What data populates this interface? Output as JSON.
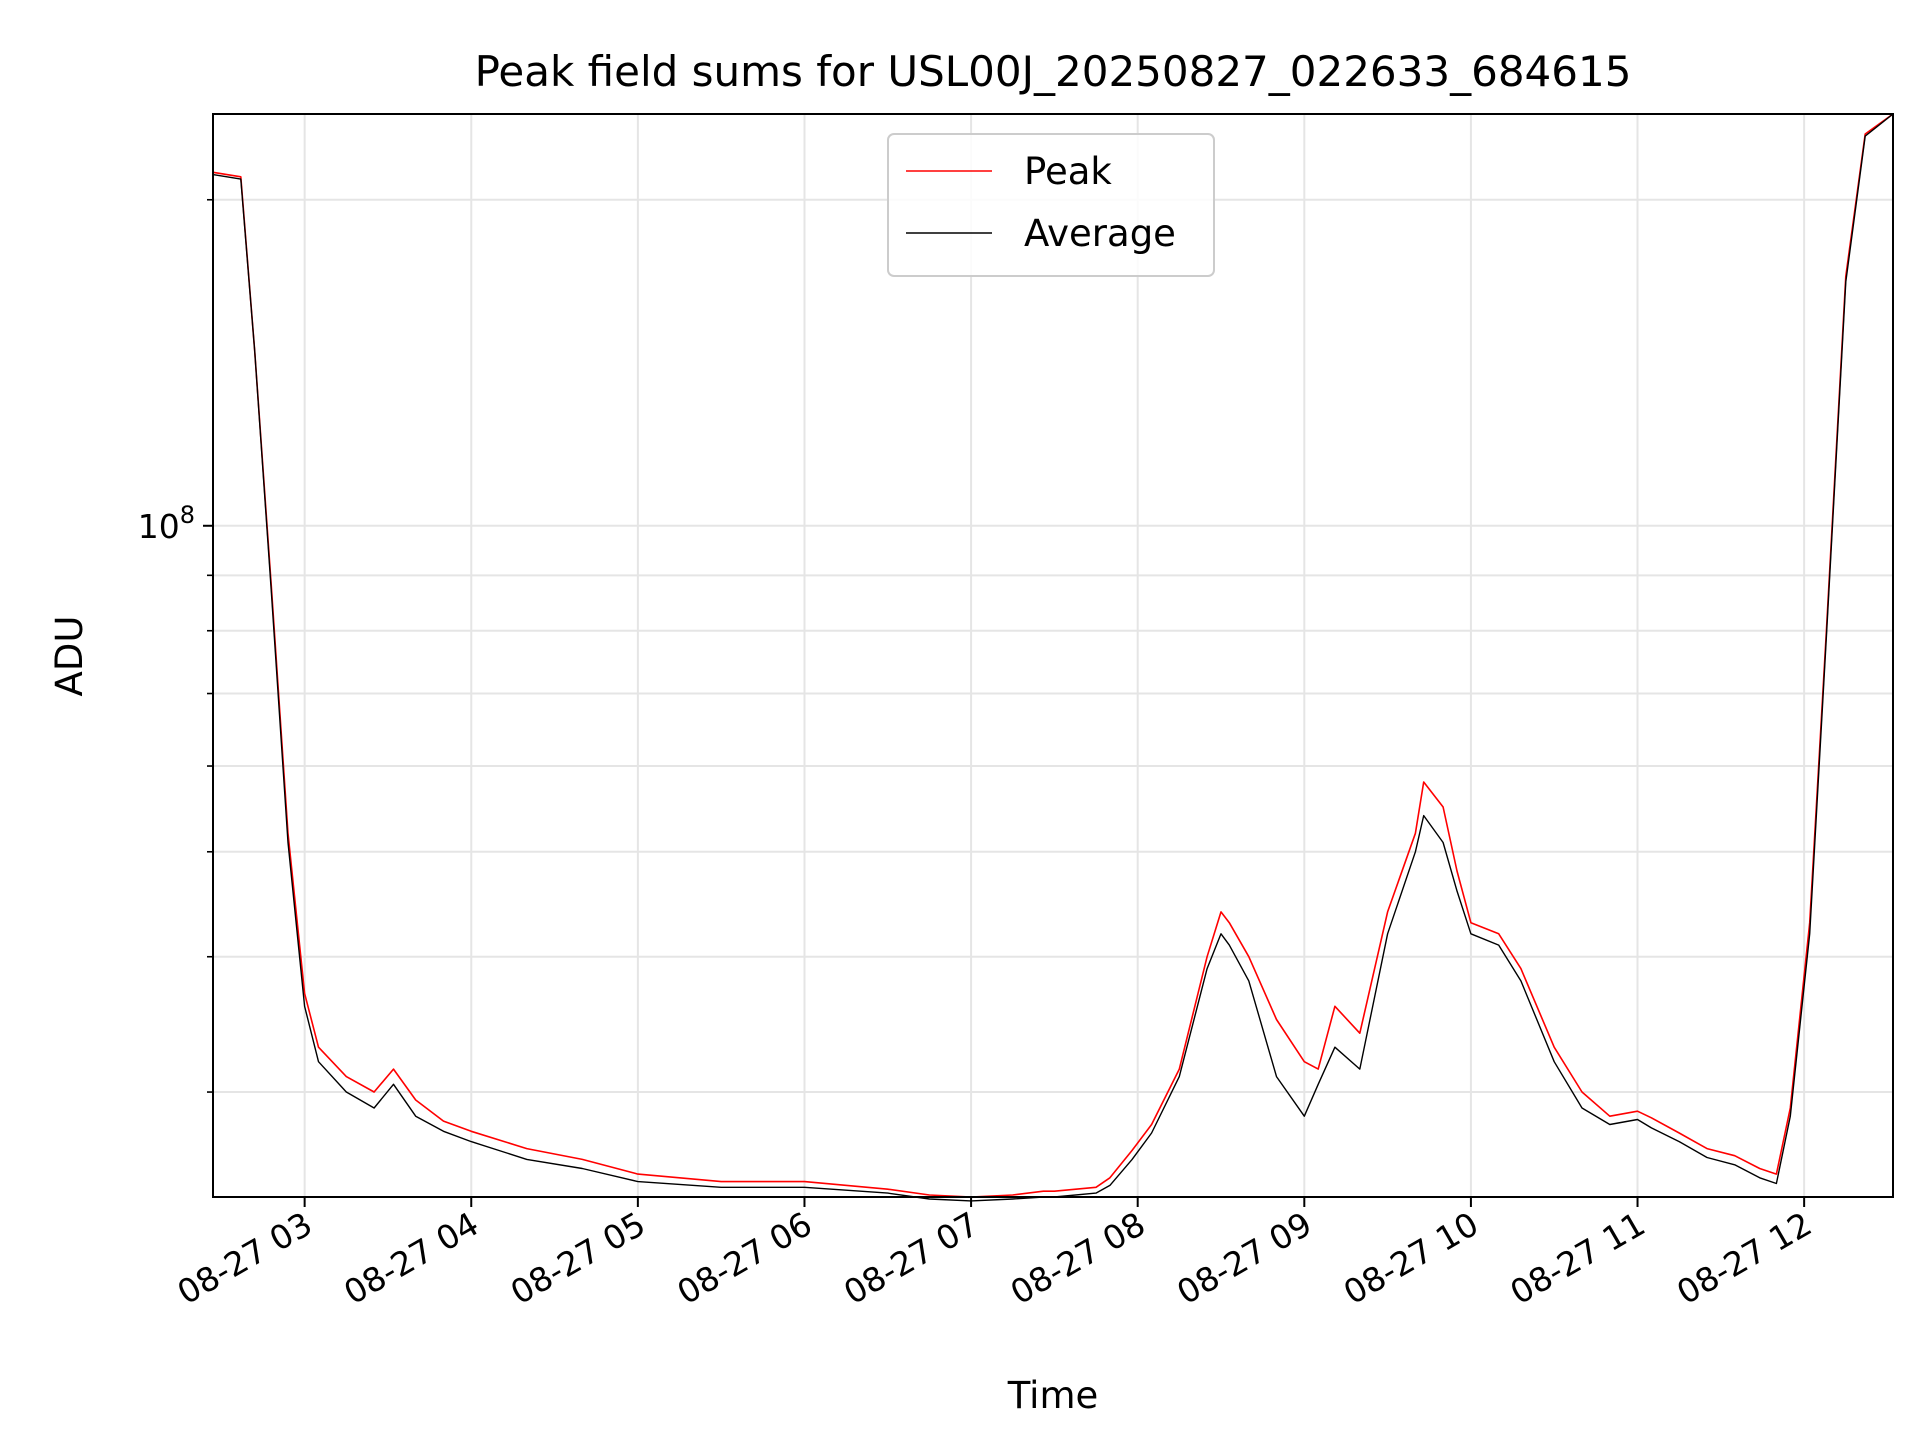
{
  "chart_data": {
    "type": "line",
    "title": "Peak field sums for USL00J_20250827_022633_684615",
    "xlabel": "Time",
    "ylabel": "ADU",
    "y_scale": "log",
    "xlim": [
      "2025-08-27 02:27",
      "2025-08-27 12:32"
    ],
    "ylim": [
      24000000,
      240000000
    ],
    "x_ticks": [
      "08-27 03",
      "08-27 04",
      "08-27 05",
      "08-27 06",
      "08-27 07",
      "08-27 08",
      "08-27 09",
      "08-27 10",
      "08-27 11",
      "08-27 12"
    ],
    "y_ticks": [
      {
        "value": 100000000,
        "label": "10^8"
      }
    ],
    "grid": true,
    "legend_position": "upper center",
    "series": [
      {
        "name": "Peak",
        "color": "#ff0000",
        "x": [
          "2025-08-27 02:27",
          "2025-08-27 02:37",
          "2025-08-27 02:42",
          "2025-08-27 02:48",
          "2025-08-27 02:54",
          "2025-08-27 03:00",
          "2025-08-27 03:05",
          "2025-08-27 03:15",
          "2025-08-27 03:25",
          "2025-08-27 03:32",
          "2025-08-27 03:40",
          "2025-08-27 03:50",
          "2025-08-27 04:00",
          "2025-08-27 04:20",
          "2025-08-27 04:40",
          "2025-08-27 05:00",
          "2025-08-27 05:30",
          "2025-08-27 06:00",
          "2025-08-27 06:30",
          "2025-08-27 06:45",
          "2025-08-27 07:00",
          "2025-08-27 07:15",
          "2025-08-27 07:26",
          "2025-08-27 07:30",
          "2025-08-27 07:45",
          "2025-08-27 07:50",
          "2025-08-27 07:58",
          "2025-08-27 08:05",
          "2025-08-27 08:15",
          "2025-08-27 08:25",
          "2025-08-27 08:30",
          "2025-08-27 08:33",
          "2025-08-27 08:40",
          "2025-08-27 08:50",
          "2025-08-27 09:00",
          "2025-08-27 09:05",
          "2025-08-27 09:11",
          "2025-08-27 09:20",
          "2025-08-27 09:30",
          "2025-08-27 09:40",
          "2025-08-27 09:43",
          "2025-08-27 09:50",
          "2025-08-27 09:55",
          "2025-08-27 10:00",
          "2025-08-27 10:10",
          "2025-08-27 10:18",
          "2025-08-27 10:30",
          "2025-08-27 10:40",
          "2025-08-27 10:50",
          "2025-08-27 11:00",
          "2025-08-27 11:05",
          "2025-08-27 11:15",
          "2025-08-27 11:25",
          "2025-08-27 11:35",
          "2025-08-27 11:44",
          "2025-08-27 11:50",
          "2025-08-27 11:55",
          "2025-08-27 12:02",
          "2025-08-27 12:08",
          "2025-08-27 12:15",
          "2025-08-27 12:22",
          "2025-08-27 12:32"
        ],
        "y": [
          212000000,
          210000000,
          145000000,
          88000000,
          52000000,
          37000000,
          33000000,
          31000000,
          30000000,
          31500000,
          29500000,
          28200000,
          27600000,
          26600000,
          26000000,
          25200000,
          24800000,
          24800000,
          24400000,
          24100000,
          24000000,
          24100000,
          24300000,
          24300000,
          24500000,
          25000000,
          26500000,
          28000000,
          31500000,
          40000000,
          44000000,
          43000000,
          40000000,
          35000000,
          32000000,
          31500000,
          36000000,
          34000000,
          44000000,
          52000000,
          58000000,
          55000000,
          48000000,
          43000000,
          42000000,
          39000000,
          33000000,
          30000000,
          28500000,
          28800000,
          28400000,
          27500000,
          26600000,
          26200000,
          25500000,
          25200000,
          29000000,
          43000000,
          80000000,
          170000000,
          230000000,
          240000000
        ]
      },
      {
        "name": "Average",
        "color": "#000000",
        "x": [
          "2025-08-27 02:27",
          "2025-08-27 02:37",
          "2025-08-27 02:42",
          "2025-08-27 02:48",
          "2025-08-27 02:54",
          "2025-08-27 03:00",
          "2025-08-27 03:05",
          "2025-08-27 03:15",
          "2025-08-27 03:25",
          "2025-08-27 03:32",
          "2025-08-27 03:40",
          "2025-08-27 03:50",
          "2025-08-27 04:00",
          "2025-08-27 04:20",
          "2025-08-27 04:40",
          "2025-08-27 05:00",
          "2025-08-27 05:30",
          "2025-08-27 06:00",
          "2025-08-27 06:30",
          "2025-08-27 06:45",
          "2025-08-27 07:00",
          "2025-08-27 07:15",
          "2025-08-27 07:26",
          "2025-08-27 07:30",
          "2025-08-27 07:45",
          "2025-08-27 07:50",
          "2025-08-27 07:58",
          "2025-08-27 08:05",
          "2025-08-27 08:15",
          "2025-08-27 08:25",
          "2025-08-27 08:30",
          "2025-08-27 08:33",
          "2025-08-27 08:40",
          "2025-08-27 08:50",
          "2025-08-27 09:00",
          "2025-08-27 09:05",
          "2025-08-27 09:11",
          "2025-08-27 09:20",
          "2025-08-27 09:30",
          "2025-08-27 09:40",
          "2025-08-27 09:43",
          "2025-08-27 09:50",
          "2025-08-27 09:55",
          "2025-08-27 10:00",
          "2025-08-27 10:10",
          "2025-08-27 10:18",
          "2025-08-27 10:30",
          "2025-08-27 10:40",
          "2025-08-27 10:50",
          "2025-08-27 11:00",
          "2025-08-27 11:05",
          "2025-08-27 11:15",
          "2025-08-27 11:25",
          "2025-08-27 11:35",
          "2025-08-27 11:44",
          "2025-08-27 11:50",
          "2025-08-27 11:55",
          "2025-08-27 12:02",
          "2025-08-27 12:08",
          "2025-08-27 12:15",
          "2025-08-27 12:22",
          "2025-08-27 12:32"
        ],
        "y": [
          211000000,
          209000000,
          145000000,
          87000000,
          51000000,
          36000000,
          32000000,
          30000000,
          29000000,
          30500000,
          28500000,
          27600000,
          27000000,
          26000000,
          25500000,
          24800000,
          24500000,
          24500000,
          24200000,
          23900000,
          23800000,
          23900000,
          24000000,
          24000000,
          24200000,
          24600000,
          26000000,
          27500000,
          31000000,
          39000000,
          42000000,
          41000000,
          38000000,
          31000000,
          28500000,
          30500000,
          33000000,
          31500000,
          42000000,
          50000000,
          54000000,
          51000000,
          46000000,
          42000000,
          41000000,
          38000000,
          32000000,
          29000000,
          28000000,
          28300000,
          27800000,
          27000000,
          26100000,
          25700000,
          25000000,
          24700000,
          28500000,
          42000000,
          79000000,
          168000000,
          229000000,
          240000000
        ]
      }
    ]
  }
}
